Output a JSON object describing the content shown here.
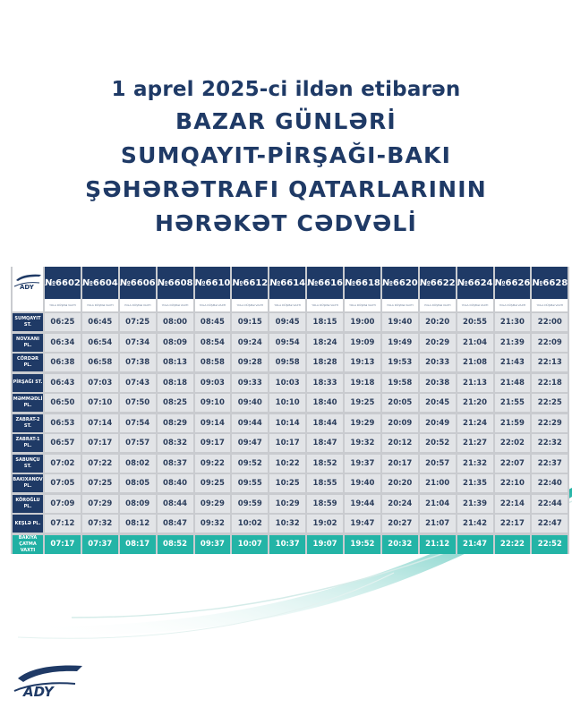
{
  "heading": {
    "line1": "1 aprel 2025-ci ildən etibarən",
    "line2": "BAZAR GÜNLƏRİ",
    "line3": "SUMQAYIT-PİRŞAĞI-BAKI",
    "line4": "ŞƏHƏRƏTRAFI QATARLARININ",
    "line5": "HƏRƏKƏT CƏDVƏLİ"
  },
  "logo_text": "ADY",
  "brand_colors": {
    "navy": "#1f3a66",
    "teal": "#23b4a6",
    "row_grey": "#e2e4e7"
  },
  "table": {
    "trains": [
      "№6602",
      "№6604",
      "№6606",
      "№6608",
      "№6610",
      "№6612",
      "№6614",
      "№6616",
      "№6618",
      "№6620",
      "№6622",
      "№6624",
      "№6626",
      "№6628"
    ],
    "sublabel": "YOLA DÜŞMƏ VAXTI",
    "rows": [
      {
        "station": "SUMQAYIT ST.",
        "times": [
          "06:25",
          "06:45",
          "07:25",
          "08:00",
          "08:45",
          "09:15",
          "09:45",
          "18:15",
          "19:00",
          "19:40",
          "20:20",
          "20:55",
          "21:30",
          "22:00"
        ]
      },
      {
        "station": "NOVXANI PL.",
        "times": [
          "06:34",
          "06:54",
          "07:34",
          "08:09",
          "08:54",
          "09:24",
          "09:54",
          "18:24",
          "19:09",
          "19:49",
          "20:29",
          "21:04",
          "21:39",
          "22:09"
        ]
      },
      {
        "station": "CÖRDƏR PL.",
        "times": [
          "06:38",
          "06:58",
          "07:38",
          "08:13",
          "08:58",
          "09:28",
          "09:58",
          "18:28",
          "19:13",
          "19:53",
          "20:33",
          "21:08",
          "21:43",
          "22:13"
        ]
      },
      {
        "station": "PİRŞAĞI ST.",
        "times": [
          "06:43",
          "07:03",
          "07:43",
          "08:18",
          "09:03",
          "09:33",
          "10:03",
          "18:33",
          "19:18",
          "19:58",
          "20:38",
          "21:13",
          "21:48",
          "22:18"
        ]
      },
      {
        "station": "MƏMMƏDLİ PL.",
        "times": [
          "06:50",
          "07:10",
          "07:50",
          "08:25",
          "09:10",
          "09:40",
          "10:10",
          "18:40",
          "19:25",
          "20:05",
          "20:45",
          "21:20",
          "21:55",
          "22:25"
        ]
      },
      {
        "station": "ZABRAT-2 ST.",
        "times": [
          "06:53",
          "07:14",
          "07:54",
          "08:29",
          "09:14",
          "09:44",
          "10:14",
          "18:44",
          "19:29",
          "20:09",
          "20:49",
          "21:24",
          "21:59",
          "22:29"
        ]
      },
      {
        "station": "ZABRAT-1 PL.",
        "times": [
          "06:57",
          "07:17",
          "07:57",
          "08:32",
          "09:17",
          "09:47",
          "10:17",
          "18:47",
          "19:32",
          "20:12",
          "20:52",
          "21:27",
          "22:02",
          "22:32"
        ]
      },
      {
        "station": "SABUNÇU ST.",
        "times": [
          "07:02",
          "07:22",
          "08:02",
          "08:37",
          "09:22",
          "09:52",
          "10:22",
          "18:52",
          "19:37",
          "20:17",
          "20:57",
          "21:32",
          "22:07",
          "22:37"
        ]
      },
      {
        "station": "BAKIXANOV PL.",
        "times": [
          "07:05",
          "07:25",
          "08:05",
          "08:40",
          "09:25",
          "09:55",
          "10:25",
          "18:55",
          "19:40",
          "20:20",
          "21:00",
          "21:35",
          "22:10",
          "22:40"
        ]
      },
      {
        "station": "KÖROĞLU PL.",
        "times": [
          "07:09",
          "07:29",
          "08:09",
          "08:44",
          "09:29",
          "09:59",
          "10:29",
          "18:59",
          "19:44",
          "20:24",
          "21:04",
          "21:39",
          "22:14",
          "22:44"
        ]
      },
      {
        "station": "KEŞLƏ PL.",
        "times": [
          "07:12",
          "07:32",
          "08:12",
          "08:47",
          "09:32",
          "10:02",
          "10:32",
          "19:02",
          "19:47",
          "20:27",
          "21:07",
          "21:42",
          "22:17",
          "22:47"
        ]
      }
    ],
    "arrival": {
      "label_line1": "BAKIYA",
      "label_line2": "ÇATMA VAXTI",
      "times": [
        "07:17",
        "07:37",
        "08:17",
        "08:52",
        "09:37",
        "10:07",
        "10:37",
        "19:07",
        "19:52",
        "20:32",
        "21:12",
        "21:47",
        "22:22",
        "22:52"
      ]
    }
  }
}
